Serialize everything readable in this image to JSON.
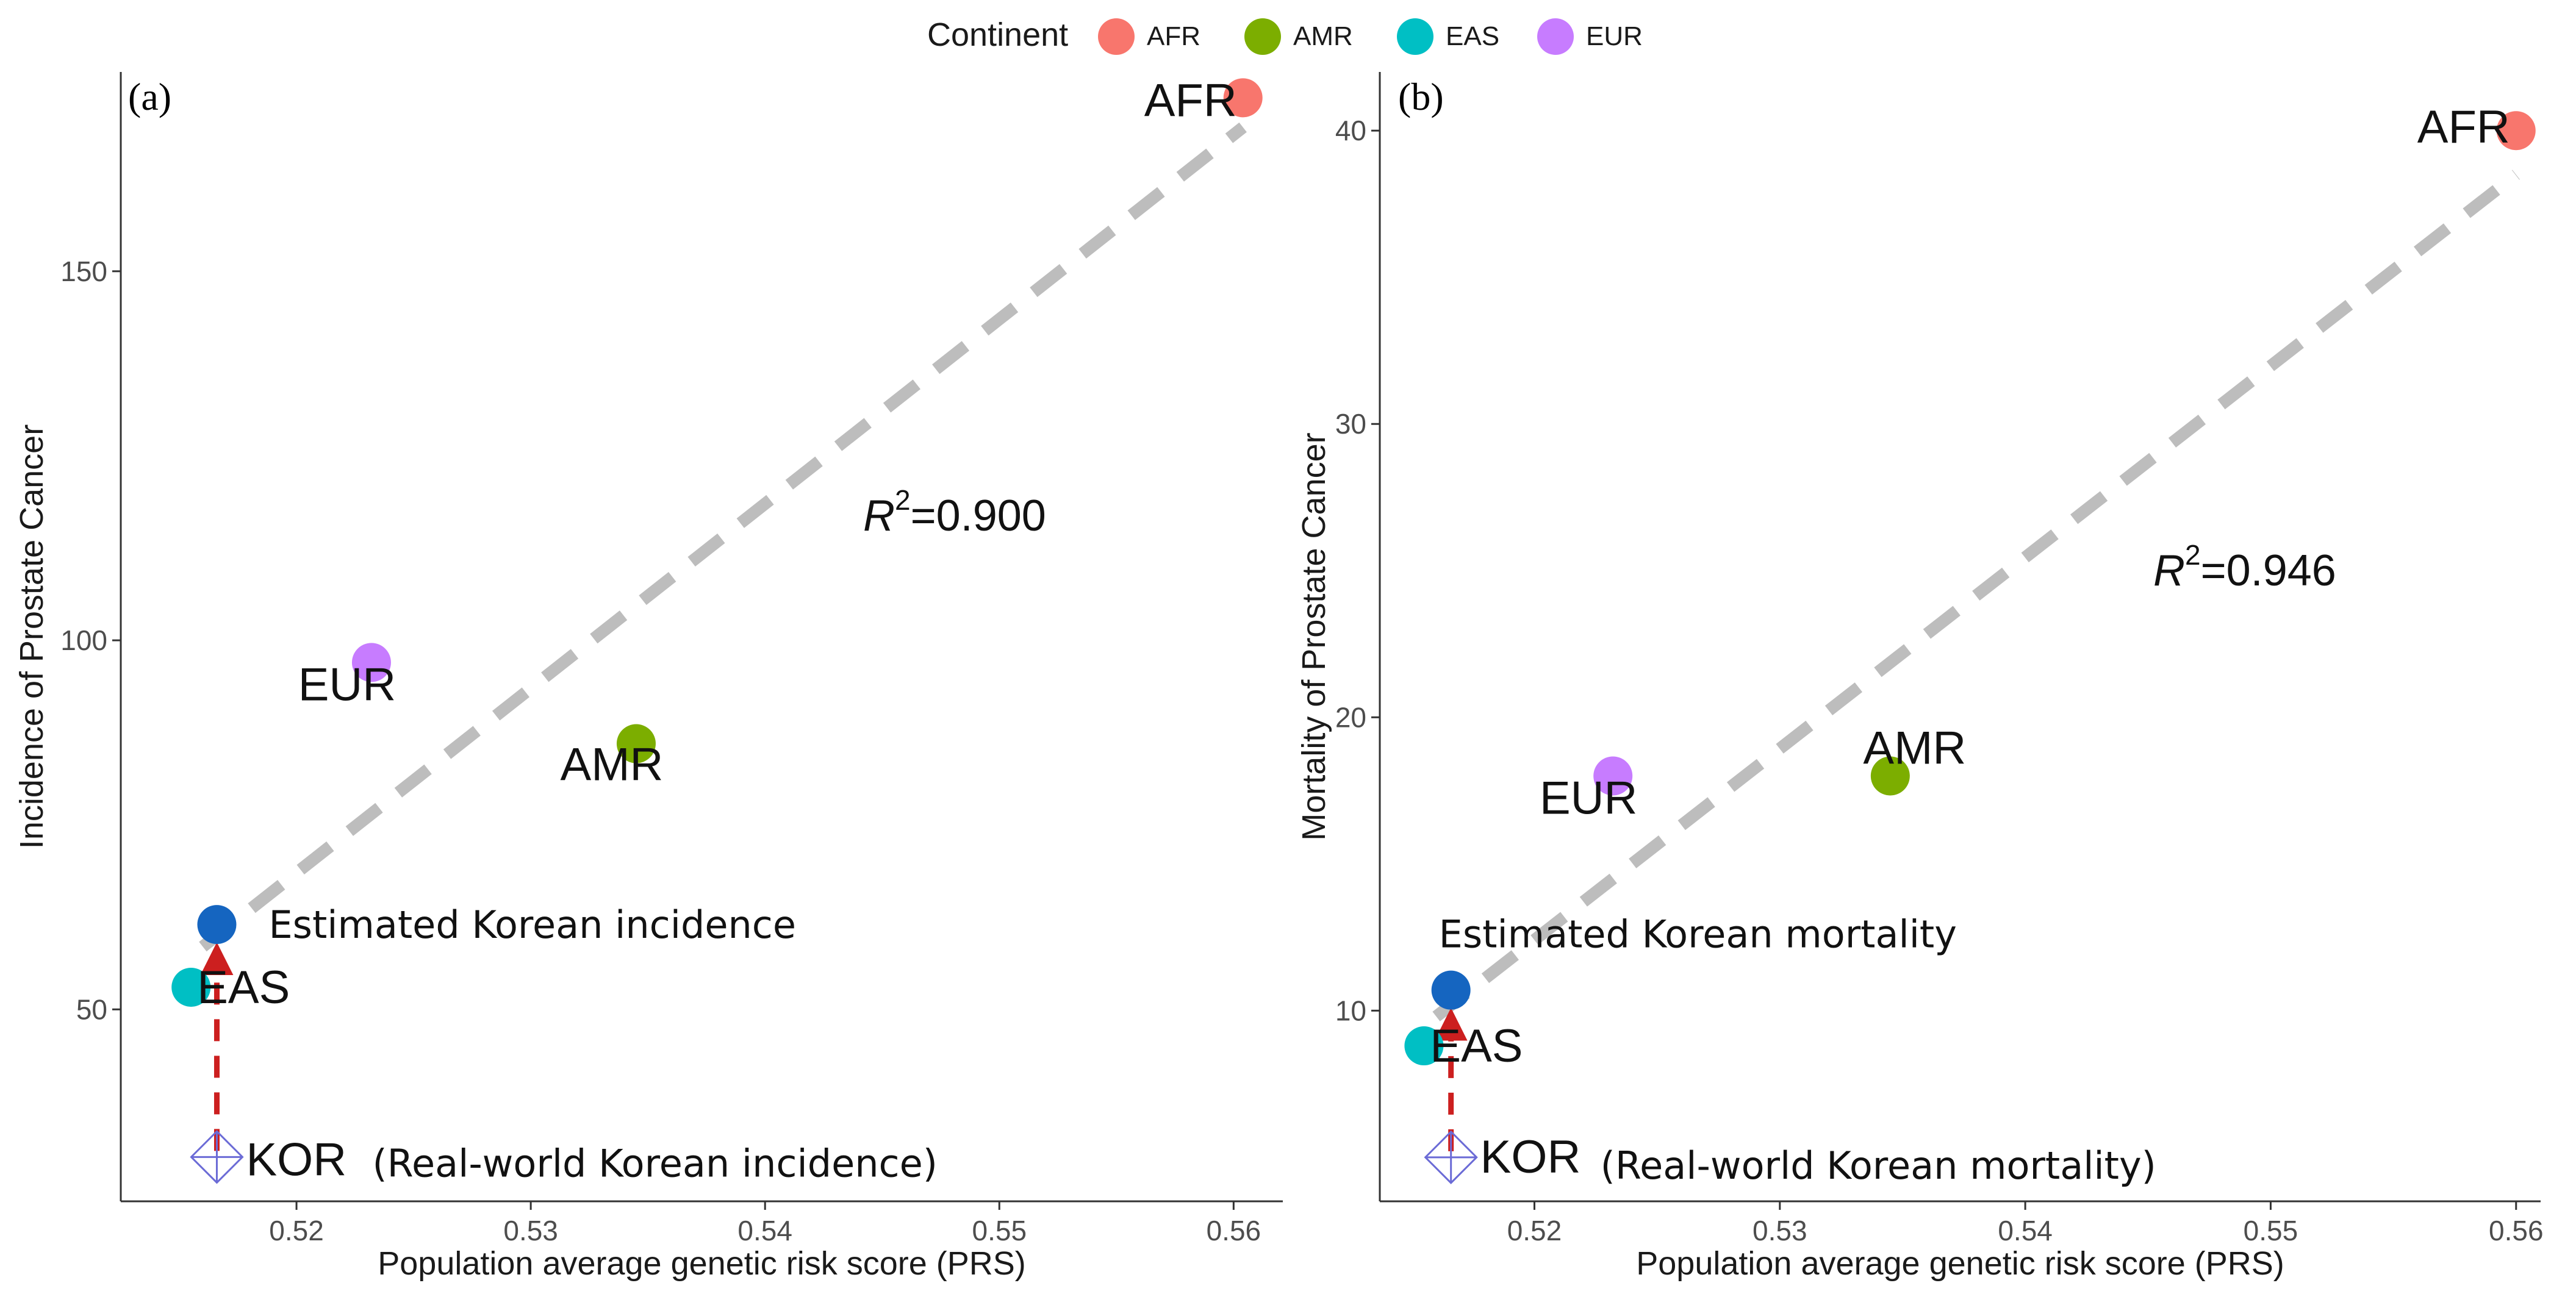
{
  "legend": {
    "title": "Continent",
    "items": [
      {
        "label": "AFR",
        "color": "#F8766D"
      },
      {
        "label": "AMR",
        "color": "#7CAE00"
      },
      {
        "label": "EAS",
        "color": "#00BFC4"
      },
      {
        "label": "EUR",
        "color": "#C77CFF"
      }
    ]
  },
  "colors": {
    "trend": "#bdbdbd",
    "estimate": "#1565C0",
    "arrow": "#cc1f1f",
    "kor": "#6b6bd6"
  },
  "chart_data": [
    {
      "type": "scatter",
      "panel_tag": "(a)",
      "xlabel": "Population average genetic risk score (PRS)",
      "ylabel": "Incidence of Prostate Cancer",
      "xlim": [
        0.5125,
        0.5621
      ],
      "ylim": [
        24,
        177
      ],
      "x_ticks": [
        0.52,
        0.53,
        0.54,
        0.55,
        0.56
      ],
      "x_tick_labels": [
        "0.52",
        "0.53",
        "0.54",
        "0.55",
        "0.56"
      ],
      "y_ticks": [
        50,
        100,
        150
      ],
      "y_tick_labels": [
        "50",
        "100",
        "150"
      ],
      "points": [
        {
          "label": "AFR",
          "x": 0.5604,
          "y": 173.5
        },
        {
          "label": "AMR",
          "x": 0.5345,
          "y": 86
        },
        {
          "label": "EAS",
          "x": 0.5155,
          "y": 53
        },
        {
          "label": "EUR",
          "x": 0.5232,
          "y": 97
        }
      ],
      "trend": {
        "x": [
          0.516,
          0.5604
        ],
        "y": [
          58.5,
          169.5
        ]
      },
      "r2_base": "R",
      "r2_sup": "2",
      "r2_value": "=0.900",
      "estimate": {
        "x": 0.5166,
        "y": 61.5,
        "label": "Estimated Korean incidence"
      },
      "kor": {
        "x": 0.5166,
        "y": 30,
        "label": "KOR",
        "note": "(Real-world Korean incidence)"
      }
    },
    {
      "type": "scatter",
      "panel_tag": "(b)",
      "xlabel": "Population average genetic risk score (PRS)",
      "ylabel": "Mortality of Prostate Cancer",
      "xlim": [
        0.5137,
        0.561
      ],
      "ylim": [
        3.5,
        42
      ],
      "x_ticks": [
        0.52,
        0.53,
        0.54,
        0.55,
        0.56
      ],
      "x_tick_labels": [
        "0.52",
        "0.53",
        "0.54",
        "0.55",
        "0.56"
      ],
      "y_ticks": [
        10,
        20,
        30,
        40
      ],
      "y_tick_labels": [
        "10",
        "20",
        "30",
        "40"
      ],
      "points": [
        {
          "label": "AFR",
          "x": 0.56,
          "y": 40
        },
        {
          "label": "AMR",
          "x": 0.5345,
          "y": 18
        },
        {
          "label": "EAS",
          "x": 0.5155,
          "y": 8.8
        },
        {
          "label": "EUR",
          "x": 0.5232,
          "y": 18
        }
      ],
      "trend": {
        "x": [
          0.516,
          0.56
        ],
        "y": [
          9.8,
          38.5
        ]
      },
      "r2_base": "R",
      "r2_sup": "2",
      "r2_value": "=0.946",
      "estimate": {
        "x": 0.5166,
        "y": 10.7,
        "label": "Estimated Korean mortality"
      },
      "kor": {
        "x": 0.5166,
        "y": 5.0,
        "label": "KOR",
        "note": "(Real-world Korean mortality)"
      }
    }
  ]
}
